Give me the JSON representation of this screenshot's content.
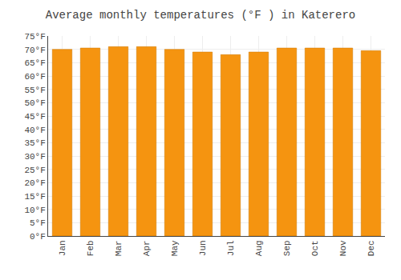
{
  "chart_data": {
    "type": "bar",
    "title": "Average monthly temperatures (°F ) in Katerero",
    "categories": [
      "Jan",
      "Feb",
      "Mar",
      "Apr",
      "May",
      "Jun",
      "Jul",
      "Aug",
      "Sep",
      "Oct",
      "Nov",
      "Dec"
    ],
    "values": [
      70.0,
      70.5,
      71.0,
      71.0,
      70.0,
      69.0,
      68.0,
      69.0,
      70.5,
      70.5,
      70.5,
      69.5
    ],
    "color": "#F59410",
    "ylim": [
      0,
      75
    ],
    "yticks": [
      {
        "value": 0,
        "label": "0°F"
      },
      {
        "value": 5,
        "label": "5°F"
      },
      {
        "value": 10,
        "label": "10°F"
      },
      {
        "value": 15,
        "label": "15°F"
      },
      {
        "value": 20,
        "label": "20°F"
      },
      {
        "value": 25,
        "label": "25°F"
      },
      {
        "value": 30,
        "label": "30°F"
      },
      {
        "value": 35,
        "label": "35°F"
      },
      {
        "value": 40,
        "label": "40°F"
      },
      {
        "value": 45,
        "label": "45°F"
      },
      {
        "value": 50,
        "label": "50°F"
      },
      {
        "value": 55,
        "label": "55°F"
      },
      {
        "value": 60,
        "label": "60°F"
      },
      {
        "value": 65,
        "label": "65°F"
      },
      {
        "value": 70,
        "label": "70°F"
      },
      {
        "value": 75,
        "label": "75°F"
      }
    ],
    "grid": true
  }
}
